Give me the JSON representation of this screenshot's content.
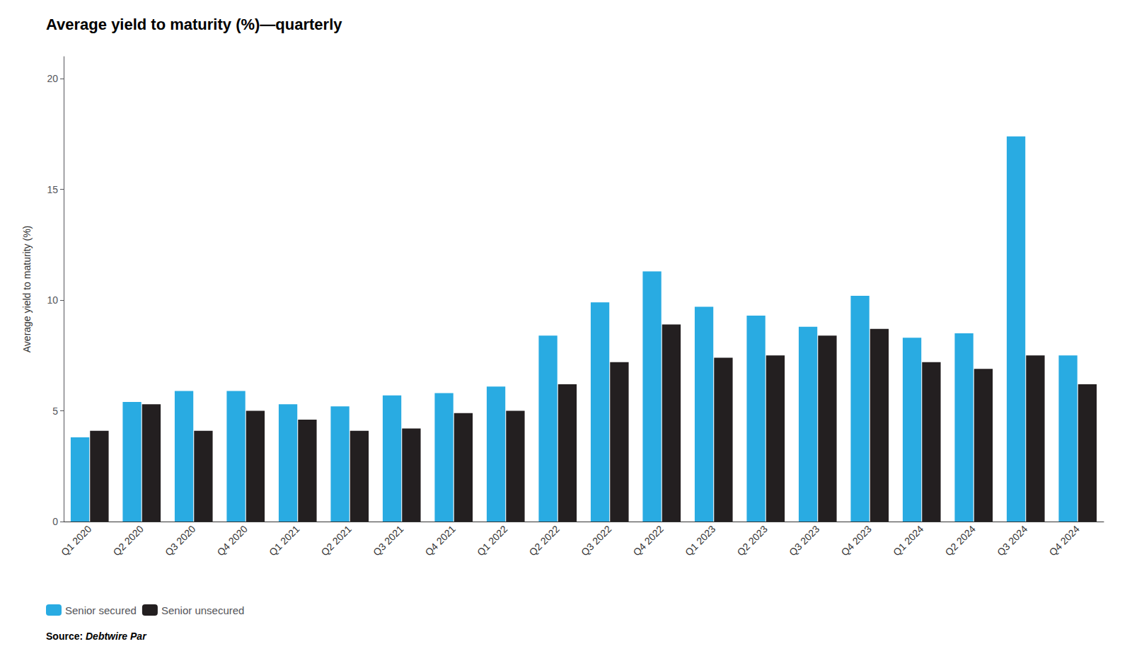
{
  "chart_data": {
    "type": "bar",
    "title": "Average yield to maturity (%)—quarterly",
    "ylabel": "Average yield to maturity (%)",
    "annotations": [
      "Source: ",
      "Debtwire Par"
    ],
    "categories": [
      "Q1 2020",
      "Q2 2020",
      "Q3 2020",
      "Q4 2020",
      "Q1 2021",
      "Q2 2021",
      "Q3 2021",
      "Q4 2021",
      "Q1 2022",
      "Q2 2022",
      "Q3 2022",
      "Q4 2022",
      "Q1 2023",
      "Q2 2023",
      "Q3 2023",
      "Q4 2023",
      "Q1 2024",
      "Q2 2024",
      "Q3 2024",
      "Q4 2024"
    ],
    "series": [
      {
        "name": "Senior secured",
        "color": "#29ABE2",
        "values": [
          3.8,
          5.4,
          5.9,
          5.9,
          5.3,
          5.2,
          5.7,
          5.8,
          6.1,
          8.4,
          9.9,
          11.3,
          9.7,
          9.3,
          8.8,
          10.2,
          8.3,
          8.5,
          17.4,
          7.5
        ]
      },
      {
        "name": "Senior unsecured",
        "color": "#231F20",
        "values": [
          4.1,
          5.3,
          4.1,
          5.0,
          4.6,
          4.1,
          4.2,
          4.9,
          5.0,
          6.2,
          7.2,
          8.9,
          7.4,
          7.5,
          8.4,
          8.7,
          7.2,
          6.9,
          7.5,
          6.2
        ]
      }
    ],
    "ylim": [
      0,
      21
    ],
    "yticks": [
      0,
      5,
      10,
      15,
      20
    ],
    "grid": false,
    "legend": "lower left"
  }
}
